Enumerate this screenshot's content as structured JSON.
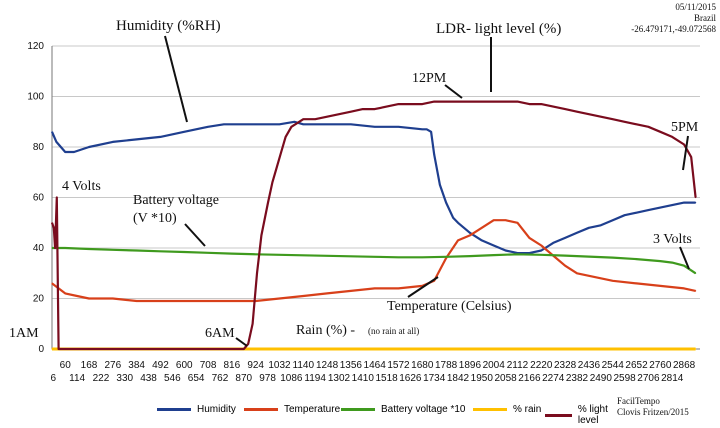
{
  "meta": {
    "date": "05/11/2015",
    "country": "Brazil",
    "coords": "-26.479171,-49.072568",
    "credit_line1": "FacilTempo",
    "credit_line2": "Clovis Fritzen/2015"
  },
  "annotations": {
    "humidity": "Humidity (%RH)",
    "ldr": "LDR- light level (%)",
    "noon": "12PM",
    "five_pm": "5PM",
    "four_volts": "4 Volts",
    "battery_line1": "Battery voltage",
    "battery_line2": "(V *10)",
    "three_volts": "3 Volts",
    "temperature": "Temperature (Celsius)",
    "one_am": "1AM",
    "six_am": "6AM",
    "rain": "Rain (%) -",
    "rain_note": "(no rain at all)"
  },
  "colors": {
    "humidity": "#1f3f8f",
    "temperature": "#d8401a",
    "battery": "#3f9a1e",
    "rain": "#ffc000",
    "light": "#7a0c1e",
    "grid": "#c8c8c8"
  },
  "chart_data": {
    "type": "line",
    "ylim": [
      0,
      120
    ],
    "yticks": [
      0,
      20,
      40,
      60,
      80,
      100,
      120
    ],
    "xlim": [
      0,
      2940
    ],
    "xticks_row1": [
      60,
      168,
      276,
      384,
      492,
      600,
      708,
      816,
      924,
      1032,
      1140,
      1248,
      1356,
      1464,
      1572,
      1680,
      1788,
      1896,
      2004,
      2112,
      2220,
      2328,
      2436,
      2544,
      2652,
      2760,
      2868
    ],
    "xticks_row2": [
      6,
      114,
      222,
      330,
      438,
      546,
      654,
      762,
      870,
      978,
      1086,
      1194,
      1302,
      1410,
      1518,
      1626,
      1734,
      1842,
      1950,
      2058,
      2166,
      2274,
      2382,
      2490,
      2598,
      2706,
      2814
    ],
    "grid": true,
    "legend_position": "bottom",
    "series": [
      {
        "name": "Humidity",
        "x": [
          0,
          20,
          60,
          100,
          168,
          276,
          384,
          492,
          600,
          708,
          780,
          816,
          924,
          980,
          1032,
          1100,
          1140,
          1248,
          1356,
          1464,
          1572,
          1680,
          1700,
          1720,
          1734,
          1760,
          1788,
          1820,
          1842,
          1896,
          1950,
          2004,
          2058,
          2112,
          2166,
          2220,
          2274,
          2328,
          2382,
          2436,
          2490,
          2544,
          2598,
          2652,
          2706,
          2760,
          2814,
          2868,
          2920
        ],
        "values": [
          86,
          82,
          78,
          78,
          80,
          82,
          83,
          84,
          86,
          88,
          89,
          89,
          89,
          89,
          89,
          90,
          89,
          89,
          89,
          88,
          88,
          87,
          87,
          86,
          77,
          65,
          58,
          52,
          50,
          46,
          43,
          41,
          39,
          38,
          38,
          39,
          42,
          44,
          46,
          48,
          49,
          51,
          53,
          54,
          55,
          56,
          57,
          58,
          58
        ]
      },
      {
        "name": "Temperature",
        "x": [
          0,
          30,
          60,
          114,
          168,
          276,
          384,
          492,
          600,
          708,
          816,
          924,
          1032,
          1140,
          1248,
          1356,
          1464,
          1572,
          1680,
          1734,
          1788,
          1842,
          1896,
          1950,
          2004,
          2058,
          2112,
          2166,
          2220,
          2274,
          2328,
          2382,
          2436,
          2544,
          2652,
          2760,
          2868,
          2920
        ],
        "values": [
          26,
          24,
          22,
          21,
          20,
          20,
          19,
          19,
          19,
          19,
          19,
          19,
          20,
          21,
          22,
          23,
          24,
          24,
          25,
          27,
          36,
          43,
          45,
          48,
          51,
          51,
          50,
          44,
          41,
          37,
          33,
          30,
          29,
          27,
          26,
          25,
          24,
          23
        ]
      },
      {
        "name": "Battery voltage *10",
        "x": [
          0,
          60,
          168,
          276,
          384,
          492,
          600,
          708,
          816,
          924,
          1032,
          1140,
          1248,
          1356,
          1464,
          1572,
          1680,
          1788,
          1896,
          2004,
          2112,
          2220,
          2328,
          2436,
          2544,
          2652,
          2760,
          2814,
          2868,
          2920
        ],
        "values": [
          40,
          40,
          39.6,
          39.3,
          39,
          38.7,
          38.4,
          38.1,
          37.8,
          37.5,
          37.3,
          37.1,
          36.9,
          36.7,
          36.5,
          36.3,
          36.3,
          36.5,
          36.8,
          37.2,
          37.5,
          37.3,
          37,
          36.6,
          36.2,
          35.6,
          34.8,
          34.2,
          33,
          30
        ]
      },
      {
        "name": "% rain",
        "x": [
          0,
          2920
        ],
        "values": [
          0,
          0
        ]
      },
      {
        "name": "% light level",
        "x": [
          0,
          8,
          14,
          22,
          30,
          60,
          168,
          276,
          384,
          492,
          600,
          708,
          816,
          870,
          890,
          910,
          930,
          950,
          980,
          1000,
          1020,
          1040,
          1060,
          1086,
          1140,
          1194,
          1248,
          1302,
          1356,
          1410,
          1464,
          1518,
          1572,
          1626,
          1680,
          1734,
          1788,
          1842,
          1896,
          1950,
          2004,
          2058,
          2112,
          2166,
          2220,
          2274,
          2328,
          2382,
          2436,
          2490,
          2544,
          2598,
          2652,
          2706,
          2760,
          2814,
          2868,
          2900,
          2920
        ],
        "values": [
          50,
          48,
          40,
          60,
          0,
          0,
          0,
          0,
          0,
          0,
          0,
          0,
          0,
          0,
          2,
          10,
          30,
          45,
          58,
          66,
          72,
          78,
          84,
          88,
          91,
          91,
          92,
          93,
          94,
          95,
          95,
          96,
          97,
          97,
          97,
          98,
          98,
          98,
          98,
          98,
          98,
          98,
          98,
          97,
          97,
          96,
          95,
          94,
          93,
          92,
          91,
          90,
          89,
          88,
          86,
          84,
          81,
          76,
          60
        ]
      }
    ]
  }
}
